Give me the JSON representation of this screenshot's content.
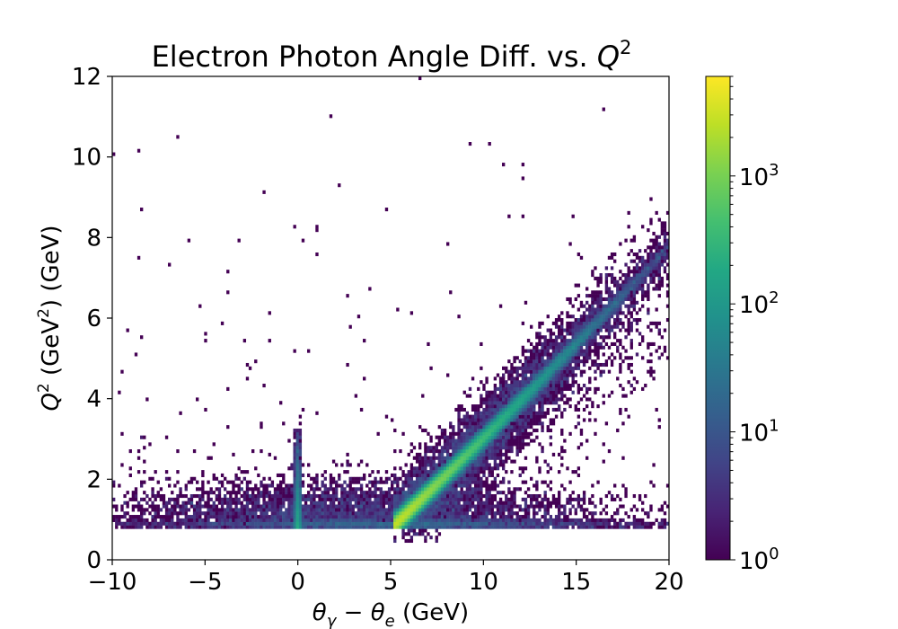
{
  "chart_data": {
    "type": "heatmap",
    "title_text": "Electron Photon Angle Diff. vs. ",
    "title_var": "Q",
    "title_exp": "2",
    "xlabel": {
      "theta1": "θ",
      "sub1": "γ",
      "minus": " − ",
      "theta2": "θ",
      "sub2": "e",
      "unit": " (GeV)"
    },
    "ylabel": {
      "var": "Q",
      "exp": "2",
      "mid": " (GeV",
      "exp2": "2",
      "unit": ") (GeV)"
    },
    "xlim": [
      -10,
      20
    ],
    "ylim": [
      0,
      12
    ],
    "x_ticks": [
      -10,
      -5,
      0,
      5,
      10,
      15,
      20
    ],
    "y_ticks": [
      0,
      2,
      4,
      6,
      8,
      10,
      12
    ],
    "colorbar": {
      "scale": "log",
      "colormap": "viridis",
      "range": [
        1,
        6000
      ],
      "ticks": [
        {
          "base": "10",
          "exp": "0"
        },
        {
          "base": "10",
          "exp": "1"
        },
        {
          "base": "10",
          "exp": "2"
        },
        {
          "base": "10",
          "exp": "3"
        }
      ]
    },
    "features": [
      {
        "name": "vertical band",
        "x": 0,
        "y_range": [
          0.8,
          3.2
        ],
        "peak_counts": 200
      },
      {
        "name": "horizontal floor",
        "x_range": [
          -10,
          20
        ],
        "y": 0.85
      },
      {
        "name": "diagonal ridge",
        "from": [
          5.3,
          0.9
        ],
        "to": [
          14,
          4.9
        ],
        "peak_counts": 3000
      }
    ],
    "bins": {
      "x_count": 200,
      "y_count": 140
    }
  }
}
